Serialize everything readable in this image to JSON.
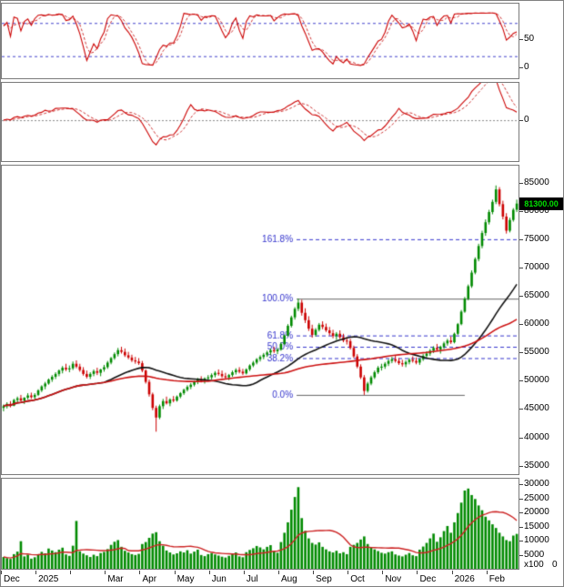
{
  "price_tag": {
    "label": "81300.00",
    "value": 81300
  },
  "colors": {
    "candle_up": "#008a00",
    "candle_down": "#cc0000",
    "volume_bar": "#008a00",
    "volume_ma": "#cc2222",
    "ma_fast": "#111111",
    "ma_slow": "#cc1111",
    "oscillator": "#cc0000",
    "oscillator_signal": "#cc3333",
    "threshold_dashed": "#4444cc",
    "fib_dashed": "#3333cc",
    "fib_solid": "#666666",
    "fib_label": "#3333cc",
    "price_tag_bg": "#000000",
    "price_tag_text": "#00e000",
    "zero_line": "#888888"
  },
  "y_axis": {
    "stochastic": [
      {
        "label": "50",
        "value": 50
      },
      {
        "label": "0",
        "value": 0
      }
    ],
    "momentum": [
      {
        "label": "0",
        "value": 0
      }
    ],
    "price": [
      {
        "label": "85000",
        "value": 85000
      },
      {
        "label": "80000",
        "value": 80000
      },
      {
        "label": "75000",
        "value": 75000
      },
      {
        "label": "70000",
        "value": 70000
      },
      {
        "label": "65000",
        "value": 65000
      },
      {
        "label": "60000",
        "value": 60000
      },
      {
        "label": "55000",
        "value": 55000
      },
      {
        "label": "50000",
        "value": 50000
      },
      {
        "label": "45000",
        "value": 45000
      },
      {
        "label": "40000",
        "value": 40000
      },
      {
        "label": "35000",
        "value": 35000
      }
    ],
    "volume": [
      {
        "label": "30000",
        "value": 30000
      },
      {
        "label": "25000",
        "value": 25000
      },
      {
        "label": "20000",
        "value": 20000
      },
      {
        "label": "15000",
        "value": 15000
      },
      {
        "label": "10000",
        "value": 10000
      },
      {
        "label": "5000",
        "value": 5000
      }
    ],
    "volume_unit": "x100",
    "volume_zero": "0"
  },
  "x_axis": {
    "labels": [
      {
        "label": "Dec",
        "index": 0
      },
      {
        "label": "2025",
        "index": 10
      },
      {
        "label": "Mar",
        "index": 30
      },
      {
        "label": "Apr",
        "index": 40
      },
      {
        "label": "May",
        "index": 50
      },
      {
        "label": "Jun",
        "index": 60
      },
      {
        "label": "Jul",
        "index": 70
      },
      {
        "label": "Aug",
        "index": 80
      },
      {
        "label": "Sep",
        "index": 90
      },
      {
        "label": "Oct",
        "index": 100
      },
      {
        "label": "Nov",
        "index": 110
      },
      {
        "label": "Dec",
        "index": 120
      },
      {
        "label": "2026",
        "index": 130
      },
      {
        "label": "Feb",
        "index": 140
      }
    ]
  },
  "chart_data": {
    "type": "multi-panel-stock-chart",
    "scales": {
      "stochastic": [
        -20,
        115
      ],
      "momentum": [
        -35,
        32
      ],
      "price": [
        33500,
        88000
      ],
      "volume": [
        0,
        32000
      ]
    },
    "panels": [
      {
        "type": "line",
        "name": "stochastic-oscillator",
        "thresholds": [
          80,
          20
        ],
        "period": 10,
        "signal_period": 3
      },
      {
        "type": "line",
        "name": "momentum-oscillator",
        "zero_line": true,
        "period": 10,
        "signal_period": 5
      },
      {
        "type": "candlestick",
        "name": "price",
        "ma_fast_period": 30,
        "ma_slow_period": 60
      },
      {
        "type": "bar",
        "name": "volume",
        "ma_period": 15,
        "unit": "x100"
      }
    ],
    "fibonacci": [
      {
        "label": "161.8%",
        "value": 75000,
        "style": "dashed",
        "from": 85,
        "to": 148
      },
      {
        "label": "100.0%",
        "value": 64500,
        "style": "solid",
        "from": 85,
        "to": 148
      },
      {
        "label": "61.8%",
        "value": 58000,
        "style": "dashed",
        "from": 85,
        "to": 148
      },
      {
        "label": "50.0%",
        "value": 56000,
        "style": "dashed",
        "from": 85,
        "to": 148
      },
      {
        "label": "38.2%",
        "value": 54000,
        "style": "dashed",
        "from": 85,
        "to": 148
      },
      {
        "label": "0.0%",
        "value": 47500,
        "style": "solid",
        "from": 85,
        "to": 133
      }
    ],
    "month_boundaries": [
      0,
      10,
      20,
      30,
      40,
      50,
      60,
      70,
      80,
      90,
      100,
      110,
      120,
      130,
      140
    ],
    "candles": [
      [
        45200,
        45800,
        44600,
        45500,
        4200
      ],
      [
        45500,
        46200,
        45100,
        45900,
        3800
      ],
      [
        45900,
        46400,
        45300,
        45600,
        3500
      ],
      [
        45600,
        46800,
        45500,
        46600,
        5200
      ],
      [
        46600,
        47200,
        46100,
        46900,
        6100
      ],
      [
        46900,
        47500,
        46300,
        46500,
        9800
      ],
      [
        46500,
        47100,
        45900,
        47000,
        4400
      ],
      [
        47000,
        47800,
        46700,
        47400,
        5000
      ],
      [
        47400,
        47900,
        46800,
        47100,
        3600
      ],
      [
        47100,
        47800,
        46600,
        47500,
        4100
      ],
      [
        47500,
        48500,
        47300,
        48300,
        5200
      ],
      [
        48300,
        49200,
        48000,
        49000,
        6000
      ],
      [
        49000,
        49800,
        48500,
        49500,
        5500
      ],
      [
        49500,
        50400,
        49300,
        50200,
        7200
      ],
      [
        50200,
        51000,
        49800,
        50700,
        6500
      ],
      [
        50700,
        51500,
        50300,
        51200,
        5900
      ],
      [
        51200,
        52000,
        50800,
        51800,
        6800
      ],
      [
        51800,
        52600,
        51300,
        52300,
        7500
      ],
      [
        52300,
        53000,
        51700,
        52000,
        5100
      ],
      [
        52000,
        52700,
        51500,
        52200,
        4600
      ],
      [
        52200,
        53400,
        51900,
        53000,
        8200
      ],
      [
        53000,
        53600,
        52200,
        52500,
        17000
      ],
      [
        52500,
        53000,
        51600,
        51900,
        6200
      ],
      [
        51900,
        52400,
        50900,
        51200,
        5400
      ],
      [
        51200,
        51800,
        50400,
        50700,
        4800
      ],
      [
        50700,
        51500,
        50300,
        51200,
        4200
      ],
      [
        51200,
        52000,
        50800,
        51700,
        5000
      ],
      [
        51700,
        52300,
        51000,
        51400,
        4500
      ],
      [
        51400,
        52100,
        50800,
        52000,
        5600
      ],
      [
        52000,
        52800,
        51600,
        52400,
        6000
      ],
      [
        52400,
        53500,
        52100,
        53200,
        7000
      ],
      [
        53200,
        54200,
        52900,
        54000,
        8500
      ],
      [
        54000,
        55000,
        53700,
        54700,
        9600
      ],
      [
        54700,
        55800,
        54300,
        55400,
        10200
      ],
      [
        55400,
        56000,
        54800,
        55100,
        7800
      ],
      [
        55100,
        55700,
        54200,
        54500,
        6400
      ],
      [
        54500,
        55100,
        53800,
        54100,
        5800
      ],
      [
        54100,
        54600,
        53300,
        53600,
        5200
      ],
      [
        53600,
        54200,
        53000,
        53400,
        4900
      ],
      [
        53400,
        54000,
        52800,
        53100,
        5300
      ],
      [
        53100,
        53500,
        51500,
        51800,
        8800
      ],
      [
        51800,
        52000,
        49500,
        49800,
        9500
      ],
      [
        49800,
        50200,
        47200,
        47600,
        11000
      ],
      [
        47600,
        47900,
        44800,
        45200,
        12500
      ],
      [
        45200,
        45600,
        41000,
        43500,
        13000
      ],
      [
        43500,
        45800,
        43200,
        45500,
        9800
      ],
      [
        45500,
        46800,
        45000,
        46400,
        8200
      ],
      [
        46400,
        47200,
        45800,
        46000,
        6500
      ],
      [
        46000,
        46900,
        45500,
        46700,
        5800
      ],
      [
        46700,
        47300,
        46200,
        46500,
        5100
      ],
      [
        46500,
        47400,
        46300,
        47200,
        5500
      ],
      [
        47200,
        48000,
        46900,
        47800,
        6200
      ],
      [
        47800,
        48600,
        47500,
        48400,
        5800
      ],
      [
        48400,
        49200,
        48100,
        48900,
        6600
      ],
      [
        48900,
        49600,
        48500,
        49300,
        5400
      ],
      [
        49300,
        50000,
        49000,
        49800,
        6100
      ],
      [
        49800,
        50500,
        49400,
        50200,
        6800
      ],
      [
        50200,
        50800,
        49700,
        50000,
        4900
      ],
      [
        50000,
        50600,
        49500,
        50400,
        4500
      ],
      [
        50400,
        51000,
        50000,
        50600,
        5200
      ],
      [
        50600,
        51300,
        50200,
        51000,
        5600
      ],
      [
        51000,
        51700,
        50600,
        51400,
        5100
      ],
      [
        51400,
        52000,
        50900,
        51200,
        4700
      ],
      [
        51200,
        51800,
        50500,
        50800,
        4300
      ],
      [
        50800,
        51400,
        50300,
        50600,
        4000
      ],
      [
        50600,
        51200,
        50100,
        51000,
        4600
      ],
      [
        51000,
        51800,
        50700,
        51500,
        5300
      ],
      [
        51500,
        52200,
        51100,
        51900,
        5800
      ],
      [
        51900,
        52400,
        51300,
        51600,
        4400
      ],
      [
        51600,
        52100,
        51000,
        51300,
        4100
      ],
      [
        51300,
        52200,
        51100,
        52000,
        5900
      ],
      [
        52000,
        52900,
        51700,
        52700,
        6700
      ],
      [
        52700,
        53500,
        52400,
        53200,
        7300
      ],
      [
        53200,
        54000,
        52900,
        53800,
        8100
      ],
      [
        53800,
        54500,
        53400,
        54200,
        7600
      ],
      [
        54200,
        54900,
        53800,
        54600,
        6900
      ],
      [
        54600,
        55300,
        54200,
        55000,
        7800
      ],
      [
        55000,
        55700,
        54500,
        55400,
        8400
      ],
      [
        55400,
        56000,
        54900,
        55200,
        6200
      ],
      [
        55200,
        55800,
        54700,
        55500,
        5700
      ],
      [
        55500,
        56800,
        55300,
        56500,
        9500
      ],
      [
        56500,
        58200,
        56300,
        58000,
        12800
      ],
      [
        58000,
        60000,
        57800,
        59700,
        16500
      ],
      [
        59700,
        61500,
        59400,
        61200,
        21000
      ],
      [
        61200,
        63000,
        60800,
        62700,
        25500
      ],
      [
        62700,
        64500,
        62300,
        63800,
        29000
      ],
      [
        63800,
        64300,
        61500,
        62000,
        18000
      ],
      [
        62000,
        62800,
        60200,
        60700,
        13500
      ],
      [
        60700,
        61400,
        58800,
        59200,
        10800
      ],
      [
        59200,
        59900,
        57600,
        58100,
        9200
      ],
      [
        58100,
        59300,
        57800,
        59000,
        8600
      ],
      [
        59000,
        60200,
        58700,
        59900,
        9400
      ],
      [
        59900,
        60500,
        59100,
        59500,
        7800
      ],
      [
        59500,
        60100,
        58600,
        58900,
        6900
      ],
      [
        58900,
        59500,
        58000,
        58400,
        6200
      ],
      [
        58400,
        59000,
        57500,
        57900,
        5800
      ],
      [
        57900,
        58600,
        57200,
        58300,
        6400
      ],
      [
        58300,
        58900,
        57400,
        57700,
        5500
      ],
      [
        57700,
        58300,
        56800,
        57100,
        5900
      ],
      [
        57100,
        57700,
        56400,
        57000,
        5200
      ],
      [
        57000,
        57400,
        55500,
        55800,
        7800
      ],
      [
        55800,
        56200,
        54000,
        54300,
        8500
      ],
      [
        54300,
        54700,
        52200,
        52500,
        9200
      ],
      [
        52500,
        52900,
        50300,
        50600,
        10400
      ],
      [
        50600,
        51000,
        47500,
        48200,
        11500
      ],
      [
        48200,
        49800,
        47900,
        49500,
        8800
      ],
      [
        49500,
        50900,
        49200,
        50600,
        7600
      ],
      [
        50600,
        51800,
        50300,
        51500,
        6900
      ],
      [
        51500,
        52600,
        51200,
        52300,
        6300
      ],
      [
        52300,
        53000,
        51800,
        52500,
        5700
      ],
      [
        52500,
        53300,
        52100,
        53000,
        5400
      ],
      [
        53000,
        53800,
        52600,
        53500,
        5900
      ],
      [
        53500,
        54200,
        53100,
        53800,
        6200
      ],
      [
        53800,
        54400,
        53200,
        53500,
        5100
      ],
      [
        53500,
        54000,
        52800,
        53100,
        4700
      ],
      [
        53100,
        53700,
        52500,
        52900,
        4400
      ],
      [
        52900,
        53600,
        52400,
        53300,
        5000
      ],
      [
        53300,
        54000,
        52900,
        53700,
        5600
      ],
      [
        53700,
        54300,
        53200,
        53500,
        4800
      ],
      [
        53500,
        54100,
        52900,
        53200,
        4500
      ],
      [
        53200,
        54000,
        52800,
        53800,
        6800
      ],
      [
        53800,
        54700,
        53500,
        54400,
        7900
      ],
      [
        54400,
        55200,
        54000,
        54800,
        9200
      ],
      [
        54800,
        55600,
        54400,
        55300,
        10800
      ],
      [
        55300,
        56100,
        54900,
        55800,
        12500
      ],
      [
        55800,
        56500,
        55200,
        55500,
        9600
      ],
      [
        55500,
        56200,
        54800,
        56000,
        11200
      ],
      [
        56000,
        56900,
        55600,
        56600,
        13400
      ],
      [
        56600,
        57400,
        56200,
        57100,
        15200
      ],
      [
        57100,
        57800,
        56500,
        56800,
        12800
      ],
      [
        56800,
        58500,
        56600,
        58300,
        16500
      ],
      [
        58300,
        60200,
        58100,
        60000,
        19800
      ],
      [
        60000,
        62500,
        59800,
        62200,
        23500
      ],
      [
        62200,
        64800,
        62000,
        64500,
        27800
      ],
      [
        64500,
        67000,
        64200,
        66700,
        28500
      ],
      [
        66700,
        69500,
        66400,
        69100,
        26200
      ],
      [
        69100,
        71800,
        68800,
        71500,
        24800
      ],
      [
        71500,
        74200,
        71100,
        73800,
        22500
      ],
      [
        73800,
        76500,
        73400,
        76100,
        20800
      ],
      [
        76100,
        78500,
        75600,
        78000,
        18500
      ],
      [
        78000,
        80200,
        77600,
        79800,
        17200
      ],
      [
        79800,
        82000,
        79400,
        81600,
        15800
      ],
      [
        81600,
        84500,
        81200,
        83800,
        14500
      ],
      [
        83800,
        84200,
        80800,
        81200,
        12800
      ],
      [
        81200,
        81800,
        78500,
        79000,
        11500
      ],
      [
        79000,
        79600,
        76000,
        76500,
        10200
      ],
      [
        76500,
        78800,
        76200,
        78400,
        9800
      ],
      [
        78400,
        80500,
        78100,
        80200,
        11800
      ],
      [
        80200,
        82000,
        79800,
        81300,
        12400
      ]
    ]
  }
}
